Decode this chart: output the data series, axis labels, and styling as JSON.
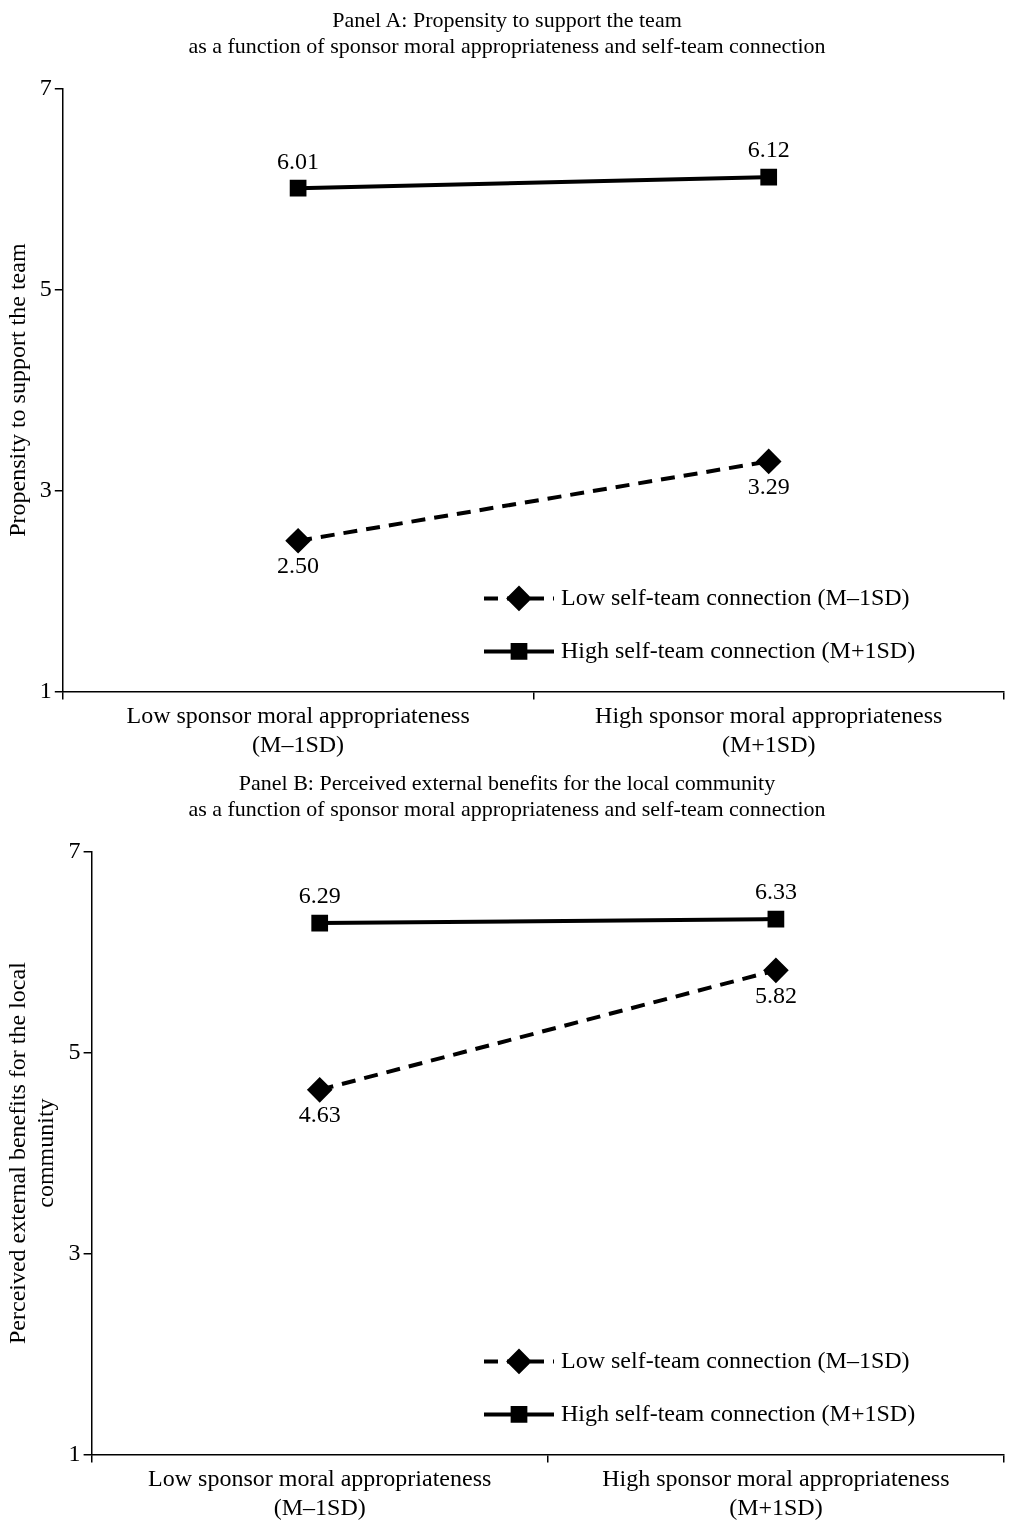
{
  "chart_data": [
    {
      "type": "line",
      "title": "Panel A: Propensity to support the team\nas a function of sponsor moral appropriateness and self-team connection",
      "ylabel": "Propensity to support the team",
      "categories": [
        "Low sponsor moral appropriateness\n(M–1SD)",
        "High sponsor moral appropriateness\n(M+1SD)"
      ],
      "ylim": [
        1,
        7
      ],
      "yticks": [
        1,
        3,
        5,
        7
      ],
      "legend": "bottom right",
      "series": [
        {
          "name": "Low self-team connection (M–1SD)",
          "color": "#000000",
          "values": [
            2.5,
            3.29
          ],
          "value_labels": [
            "2.50",
            "3.29"
          ],
          "marker": "diamond",
          "line_style": "dashed"
        },
        {
          "name": "High self-team connection (M+1SD)",
          "color": "#000000",
          "values": [
            6.01,
            6.12
          ],
          "value_labels": [
            "6.01",
            "6.12"
          ],
          "marker": "square",
          "line_style": "solid"
        }
      ]
    },
    {
      "type": "line",
      "title": "Panel B: Perceived external benefits for the local community\nas a function of sponsor moral appropriateness and self-team connection",
      "ylabel": "Perceived external benefits for the local\ncommunity",
      "categories": [
        "Low sponsor moral appropriateness\n(M–1SD)",
        "High sponsor moral appropriateness\n(M+1SD)"
      ],
      "ylim": [
        1,
        7
      ],
      "yticks": [
        1,
        3,
        5,
        7
      ],
      "legend": "bottom right",
      "series": [
        {
          "name": "Low self-team connection (M–1SD)",
          "color": "#000000",
          "values": [
            4.63,
            5.82
          ],
          "value_labels": [
            "4.63",
            "5.82"
          ],
          "marker": "diamond",
          "line_style": "dashed"
        },
        {
          "name": "High self-team connection (M+1SD)",
          "color": "#000000",
          "values": [
            6.29,
            6.33
          ],
          "value_labels": [
            "6.29",
            "6.33"
          ],
          "marker": "square",
          "line_style": "solid"
        }
      ]
    }
  ]
}
